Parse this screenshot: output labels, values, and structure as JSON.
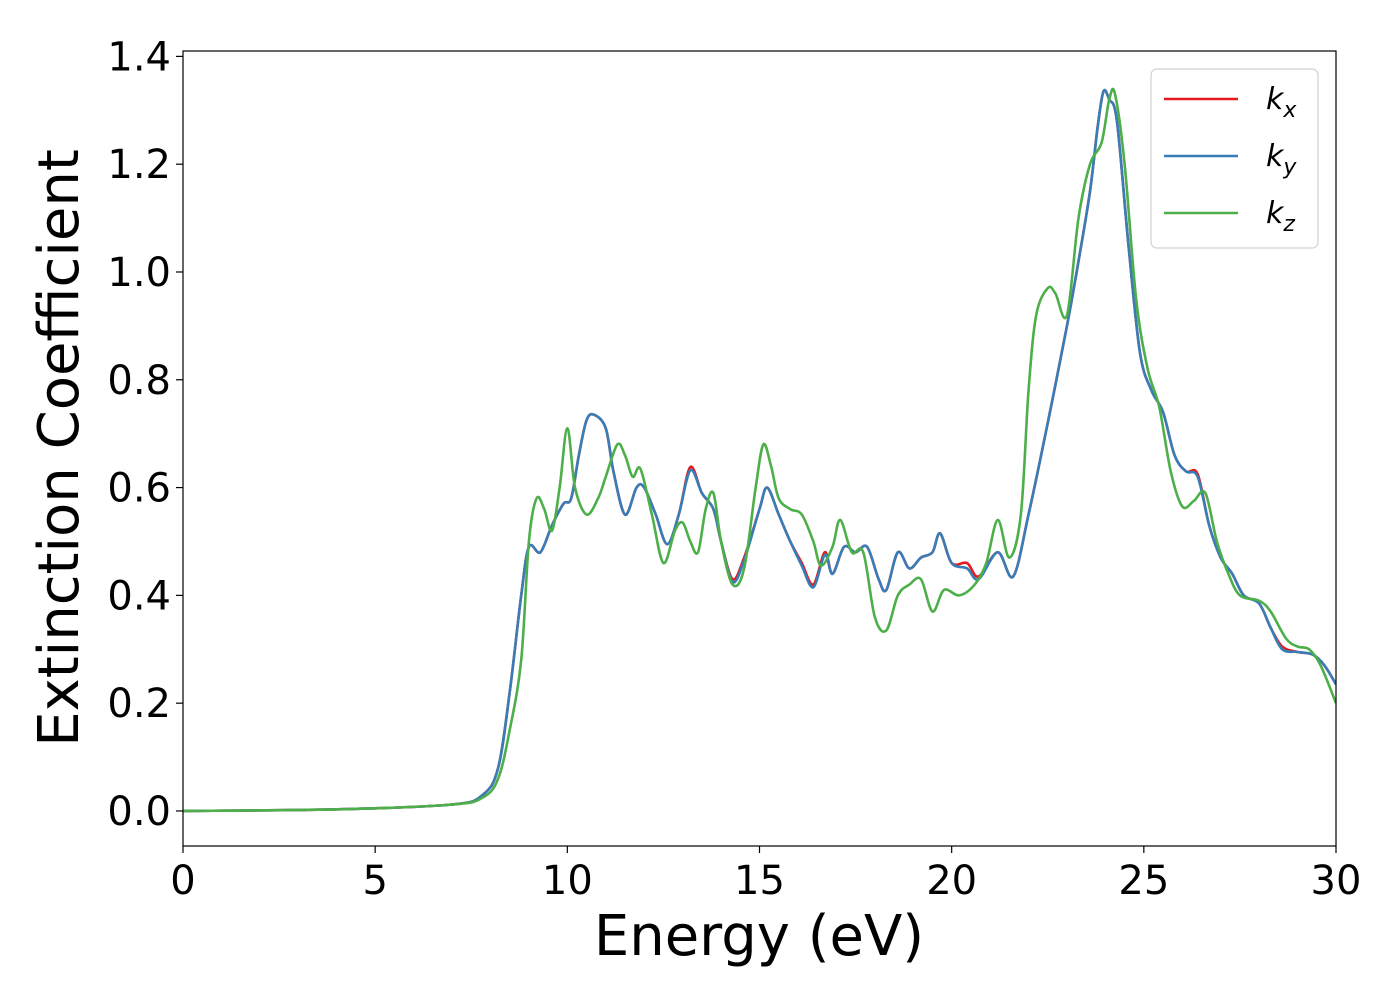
{
  "chart_data": {
    "type": "line",
    "title": "",
    "xlabel": "Energy (eV)",
    "ylabel": "Extinction Coefficient",
    "xlim": [
      0,
      30
    ],
    "ylim": [
      -0.065,
      1.41
    ],
    "xticks": [
      "0",
      "5",
      "10",
      "15",
      "20",
      "25",
      "30"
    ],
    "yticks": [
      "0.0",
      "0.2",
      "0.4",
      "0.6",
      "0.8",
      "1.0",
      "1.2",
      "1.4"
    ],
    "grid": false,
    "legend_position": "top-right",
    "series": [
      {
        "name": "k_x",
        "legend_main": "k",
        "legend_sub": "x",
        "color": "#e41a1c",
        "points": [
          [
            0,
            0
          ],
          [
            4,
            0.003
          ],
          [
            7,
            0.012
          ],
          [
            7.8,
            0.03
          ],
          [
            8.2,
            0.08
          ],
          [
            8.5,
            0.22
          ],
          [
            8.8,
            0.4
          ],
          [
            9.0,
            0.49
          ],
          [
            9.3,
            0.48
          ],
          [
            9.6,
            0.53
          ],
          [
            9.9,
            0.57
          ],
          [
            10.1,
            0.58
          ],
          [
            10.3,
            0.66
          ],
          [
            10.5,
            0.725
          ],
          [
            10.7,
            0.735
          ],
          [
            11.0,
            0.71
          ],
          [
            11.2,
            0.63
          ],
          [
            11.5,
            0.55
          ],
          [
            11.8,
            0.6
          ],
          [
            12.0,
            0.6
          ],
          [
            12.3,
            0.55
          ],
          [
            12.6,
            0.495
          ],
          [
            12.9,
            0.55
          ],
          [
            13.2,
            0.638
          ],
          [
            13.5,
            0.59
          ],
          [
            13.8,
            0.56
          ],
          [
            14.0,
            0.5
          ],
          [
            14.3,
            0.43
          ],
          [
            14.6,
            0.47
          ],
          [
            15.0,
            0.56
          ],
          [
            15.2,
            0.6
          ],
          [
            15.5,
            0.55
          ],
          [
            15.8,
            0.5
          ],
          [
            16.1,
            0.46
          ],
          [
            16.4,
            0.42
          ],
          [
            16.7,
            0.48
          ],
          [
            16.9,
            0.44
          ],
          [
            17.2,
            0.49
          ],
          [
            17.5,
            0.48
          ],
          [
            17.8,
            0.49
          ],
          [
            18.1,
            0.43
          ],
          [
            18.3,
            0.41
          ],
          [
            18.6,
            0.48
          ],
          [
            18.9,
            0.45
          ],
          [
            19.2,
            0.47
          ],
          [
            19.5,
            0.48
          ],
          [
            19.7,
            0.515
          ],
          [
            20.0,
            0.46
          ],
          [
            20.4,
            0.46
          ],
          [
            20.7,
            0.435
          ],
          [
            21.2,
            0.48
          ],
          [
            21.6,
            0.435
          ],
          [
            22.0,
            0.55
          ],
          [
            22.5,
            0.72
          ],
          [
            23.0,
            0.9
          ],
          [
            23.3,
            1.02
          ],
          [
            23.6,
            1.15
          ],
          [
            23.8,
            1.27
          ],
          [
            23.95,
            1.335
          ],
          [
            24.1,
            1.32
          ],
          [
            24.3,
            1.28
          ],
          [
            24.6,
            1.05
          ],
          [
            24.9,
            0.85
          ],
          [
            25.2,
            0.78
          ],
          [
            25.5,
            0.74
          ],
          [
            25.8,
            0.66
          ],
          [
            26.1,
            0.63
          ],
          [
            26.4,
            0.625
          ],
          [
            26.7,
            0.53
          ],
          [
            27.0,
            0.47
          ],
          [
            27.3,
            0.44
          ],
          [
            27.6,
            0.4
          ],
          [
            28.0,
            0.385
          ],
          [
            28.3,
            0.34
          ],
          [
            28.6,
            0.305
          ],
          [
            29.0,
            0.295
          ],
          [
            29.4,
            0.29
          ],
          [
            29.7,
            0.27
          ],
          [
            30.0,
            0.235
          ]
        ]
      },
      {
        "name": "k_y",
        "legend_main": "k",
        "legend_sub": "y",
        "color": "#377eb8",
        "points": [
          [
            0,
            0
          ],
          [
            4,
            0.003
          ],
          [
            7,
            0.012
          ],
          [
            7.8,
            0.03
          ],
          [
            8.2,
            0.08
          ],
          [
            8.5,
            0.22
          ],
          [
            8.8,
            0.4
          ],
          [
            9.0,
            0.49
          ],
          [
            9.3,
            0.48
          ],
          [
            9.6,
            0.53
          ],
          [
            9.9,
            0.57
          ],
          [
            10.1,
            0.58
          ],
          [
            10.3,
            0.66
          ],
          [
            10.5,
            0.725
          ],
          [
            10.7,
            0.735
          ],
          [
            11.0,
            0.71
          ],
          [
            11.2,
            0.63
          ],
          [
            11.5,
            0.55
          ],
          [
            11.8,
            0.6
          ],
          [
            12.0,
            0.6
          ],
          [
            12.3,
            0.55
          ],
          [
            12.6,
            0.495
          ],
          [
            12.9,
            0.55
          ],
          [
            13.2,
            0.632
          ],
          [
            13.5,
            0.59
          ],
          [
            13.8,
            0.56
          ],
          [
            14.0,
            0.5
          ],
          [
            14.3,
            0.425
          ],
          [
            14.6,
            0.465
          ],
          [
            15.0,
            0.56
          ],
          [
            15.2,
            0.6
          ],
          [
            15.5,
            0.55
          ],
          [
            15.8,
            0.5
          ],
          [
            16.1,
            0.455
          ],
          [
            16.4,
            0.415
          ],
          [
            16.7,
            0.475
          ],
          [
            16.9,
            0.44
          ],
          [
            17.2,
            0.49
          ],
          [
            17.5,
            0.48
          ],
          [
            17.8,
            0.49
          ],
          [
            18.1,
            0.43
          ],
          [
            18.3,
            0.41
          ],
          [
            18.6,
            0.48
          ],
          [
            18.9,
            0.45
          ],
          [
            19.2,
            0.47
          ],
          [
            19.5,
            0.48
          ],
          [
            19.7,
            0.515
          ],
          [
            20.0,
            0.46
          ],
          [
            20.4,
            0.45
          ],
          [
            20.7,
            0.43
          ],
          [
            21.2,
            0.48
          ],
          [
            21.6,
            0.435
          ],
          [
            22.0,
            0.55
          ],
          [
            22.5,
            0.72
          ],
          [
            23.0,
            0.9
          ],
          [
            23.3,
            1.02
          ],
          [
            23.6,
            1.15
          ],
          [
            23.8,
            1.27
          ],
          [
            23.95,
            1.335
          ],
          [
            24.1,
            1.32
          ],
          [
            24.3,
            1.28
          ],
          [
            24.6,
            1.05
          ],
          [
            24.9,
            0.85
          ],
          [
            25.2,
            0.78
          ],
          [
            25.5,
            0.74
          ],
          [
            25.8,
            0.66
          ],
          [
            26.1,
            0.63
          ],
          [
            26.4,
            0.62
          ],
          [
            26.7,
            0.53
          ],
          [
            27.0,
            0.47
          ],
          [
            27.3,
            0.44
          ],
          [
            27.6,
            0.4
          ],
          [
            28.0,
            0.385
          ],
          [
            28.3,
            0.34
          ],
          [
            28.6,
            0.3
          ],
          [
            29.0,
            0.295
          ],
          [
            29.4,
            0.29
          ],
          [
            29.7,
            0.27
          ],
          [
            30.0,
            0.235
          ]
        ]
      },
      {
        "name": "k_z",
        "legend_main": "k",
        "legend_sub": "z",
        "color": "#4daf4a",
        "points": [
          [
            0,
            0
          ],
          [
            4,
            0.003
          ],
          [
            7,
            0.012
          ],
          [
            7.8,
            0.025
          ],
          [
            8.2,
            0.06
          ],
          [
            8.5,
            0.15
          ],
          [
            8.8,
            0.28
          ],
          [
            9.0,
            0.5
          ],
          [
            9.2,
            0.58
          ],
          [
            9.4,
            0.56
          ],
          [
            9.6,
            0.52
          ],
          [
            9.8,
            0.6
          ],
          [
            10.0,
            0.71
          ],
          [
            10.2,
            0.6
          ],
          [
            10.5,
            0.55
          ],
          [
            10.8,
            0.58
          ],
          [
            11.0,
            0.62
          ],
          [
            11.3,
            0.68
          ],
          [
            11.5,
            0.66
          ],
          [
            11.7,
            0.62
          ],
          [
            11.9,
            0.635
          ],
          [
            12.2,
            0.55
          ],
          [
            12.5,
            0.46
          ],
          [
            12.8,
            0.52
          ],
          [
            13.0,
            0.535
          ],
          [
            13.2,
            0.5
          ],
          [
            13.4,
            0.48
          ],
          [
            13.6,
            0.56
          ],
          [
            13.8,
            0.59
          ],
          [
            14.0,
            0.5
          ],
          [
            14.3,
            0.42
          ],
          [
            14.6,
            0.45
          ],
          [
            14.9,
            0.6
          ],
          [
            15.1,
            0.68
          ],
          [
            15.3,
            0.64
          ],
          [
            15.5,
            0.58
          ],
          [
            15.8,
            0.56
          ],
          [
            16.1,
            0.55
          ],
          [
            16.4,
            0.5
          ],
          [
            16.6,
            0.455
          ],
          [
            16.9,
            0.49
          ],
          [
            17.1,
            0.54
          ],
          [
            17.4,
            0.48
          ],
          [
            17.7,
            0.48
          ],
          [
            18.0,
            0.36
          ],
          [
            18.3,
            0.335
          ],
          [
            18.6,
            0.4
          ],
          [
            18.9,
            0.42
          ],
          [
            19.2,
            0.43
          ],
          [
            19.5,
            0.37
          ],
          [
            19.8,
            0.41
          ],
          [
            20.2,
            0.4
          ],
          [
            20.6,
            0.42
          ],
          [
            20.9,
            0.46
          ],
          [
            21.2,
            0.54
          ],
          [
            21.5,
            0.47
          ],
          [
            21.8,
            0.55
          ],
          [
            22.0,
            0.78
          ],
          [
            22.2,
            0.92
          ],
          [
            22.5,
            0.97
          ],
          [
            22.7,
            0.96
          ],
          [
            23.0,
            0.92
          ],
          [
            23.3,
            1.1
          ],
          [
            23.6,
            1.2
          ],
          [
            23.9,
            1.24
          ],
          [
            24.1,
            1.32
          ],
          [
            24.25,
            1.33
          ],
          [
            24.5,
            1.2
          ],
          [
            24.8,
            0.95
          ],
          [
            25.1,
            0.82
          ],
          [
            25.4,
            0.75
          ],
          [
            25.7,
            0.63
          ],
          [
            26.0,
            0.565
          ],
          [
            26.3,
            0.575
          ],
          [
            26.6,
            0.59
          ],
          [
            26.9,
            0.5
          ],
          [
            27.2,
            0.44
          ],
          [
            27.5,
            0.4
          ],
          [
            28.0,
            0.39
          ],
          [
            28.3,
            0.37
          ],
          [
            28.7,
            0.32
          ],
          [
            29.0,
            0.305
          ],
          [
            29.3,
            0.3
          ],
          [
            29.6,
            0.27
          ],
          [
            30.0,
            0.2
          ]
        ]
      }
    ]
  }
}
